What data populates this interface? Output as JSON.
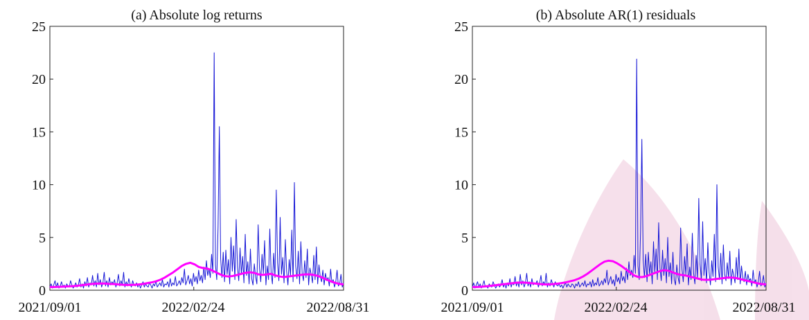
{
  "chart_data": [
    {
      "type": "line",
      "title": "(a) Absolute log returns",
      "xlabel": "",
      "ylabel": "",
      "ylim": [
        0,
        25
      ],
      "yticks": [
        0,
        5,
        10,
        15,
        20,
        25
      ],
      "x_start": "2021/09/01",
      "x_end": "2022/08/31",
      "xtick_labels": [
        "2021/09/01",
        "2022/02/24",
        "2022/08/31"
      ],
      "grid": false,
      "legend": "none",
      "series": [
        {
          "color": "#1515d6",
          "values": [
            0.3,
            0.6,
            0.2,
            0.5,
            0.9,
            0.3,
            0.7,
            0.2,
            0.4,
            0.8,
            0.3,
            0.5,
            0.2,
            0.6,
            0.4,
            0.3,
            0.9,
            0.5,
            0.2,
            0.4,
            0.7,
            0.3,
            0.5,
            1.1,
            0.3,
            0.6,
            0.2,
            0.8,
            0.4,
            1.2,
            0.3,
            0.7,
            0.5,
            1.4,
            0.4,
            0.9,
            0.3,
            1.6,
            0.5,
            1.0,
            0.3,
            0.7,
            1.7,
            0.4,
            0.9,
            0.3,
            1.2,
            0.5,
            0.8,
            0.6,
            1.0,
            0.3,
            0.7,
            1.5,
            0.4,
            0.9,
            0.5,
            1.7,
            0.3,
            0.8,
            0.4,
            1.1,
            0.6,
            0.3,
            0.9,
            0.5,
            0.4,
            0.7,
            0.3,
            0.6,
            0.2,
            0.5,
            0.8,
            0.3,
            0.6,
            0.4,
            0.3,
            0.7,
            0.5,
            0.2,
            0.6,
            0.4,
            0.9,
            0.3,
            0.5,
            0.7,
            0.4,
            1.0,
            0.3,
            0.6,
            0.5,
            0.8,
            0.3,
            1.1,
            0.4,
            0.7,
            0.5,
            1.3,
            0.4,
            0.6,
            0.9,
            0.5,
            1.2,
            0.7,
            2.0,
            0.5,
            0.9,
            1.4,
            0.6,
            1.1,
            0.4,
            1.6,
            0.8,
            1.3,
            0.6,
            1.9,
            0.9,
            1.4,
            0.7,
            2.2,
            1.0,
            2.8,
            1.4,
            2.0,
            1.2,
            3.4,
            1.6,
            22.5,
            2.4,
            1.0,
            6.0,
            15.5,
            3.0,
            1.2,
            3.6,
            0.8,
            3.8,
            1.5,
            2.9,
            0.6,
            5.0,
            1.8,
            4.2,
            1.0,
            6.7,
            2.2,
            0.9,
            4.0,
            1.5,
            3.2,
            0.7,
            5.3,
            1.4,
            2.7,
            0.6,
            3.9,
            1.1,
            0.5,
            2.5,
            1.3,
            0.6,
            6.2,
            2.1,
            0.8,
            3.4,
            1.6,
            4.7,
            0.5,
            2.3,
            1.0,
            5.8,
            1.7,
            0.6,
            3.5,
            1.2,
            9.5,
            2.6,
            0.9,
            6.9,
            1.5,
            3.1,
            0.7,
            4.8,
            1.8,
            0.5,
            2.9,
            1.4,
            5.7,
            0.8,
            10.2,
            2.3,
            1.1,
            3.7,
            0.6,
            4.6,
            1.6,
            0.9,
            2.8,
            1.2,
            3.9,
            0.5,
            2.1,
            1.5,
            0.7,
            3.3,
            1.0,
            4.1,
            0.6,
            2.4,
            1.3,
            0.8,
            1.9,
            0.5,
            1.6,
            0.9,
            1.2,
            0.4,
            2.0,
            0.7,
            1.0,
            0.3,
            0.8,
            1.9,
            0.4,
            0.6,
            1.5,
            0.3,
            0.7
          ]
        },
        {
          "color": "#ff00ff",
          "values": [
            0.3,
            0.3,
            0.32,
            0.34,
            0.36,
            0.38,
            0.4,
            0.45,
            0.5,
            0.55,
            0.6,
            0.62,
            0.64,
            0.63,
            0.6,
            0.58,
            0.55,
            0.52,
            0.5,
            0.5,
            0.52,
            0.55,
            0.6,
            0.68,
            0.75,
            0.85,
            1.0,
            1.2,
            1.45,
            1.7,
            2.0,
            2.3,
            2.5,
            2.6,
            2.45,
            2.2,
            2.1,
            2.05,
            1.9,
            1.7,
            1.5,
            1.35,
            1.3,
            1.35,
            1.45,
            1.55,
            1.65,
            1.7,
            1.65,
            1.5,
            1.45,
            1.5,
            1.55,
            1.4,
            1.3,
            1.25,
            1.3,
            1.35,
            1.4,
            1.45,
            1.5,
            1.5,
            1.45,
            1.35,
            1.2,
            1.0,
            0.85,
            0.7,
            0.6,
            0.55
          ]
        }
      ]
    },
    {
      "type": "line",
      "title": "(b) Absolute AR(1) residuals",
      "xlabel": "",
      "ylabel": "",
      "ylim": [
        0,
        25
      ],
      "yticks": [
        0,
        5,
        10,
        15,
        20,
        25
      ],
      "x_start": "2021/09/01",
      "x_end": "2022/08/31",
      "xtick_labels": [
        "2021/09/01",
        "2022/02/24",
        "2022/08/31"
      ],
      "grid": false,
      "legend": "none",
      "series": [
        {
          "color": "#1515d6",
          "values": [
            0.3,
            0.7,
            0.2,
            0.5,
            0.8,
            0.3,
            0.6,
            0.2,
            0.5,
            0.9,
            0.3,
            0.4,
            0.2,
            0.6,
            0.4,
            0.3,
            0.8,
            0.5,
            0.2,
            0.4,
            0.6,
            0.3,
            0.5,
            1.0,
            0.3,
            0.6,
            0.2,
            0.7,
            0.4,
            1.1,
            0.3,
            0.7,
            0.5,
            1.3,
            0.4,
            0.8,
            0.3,
            1.5,
            0.5,
            0.9,
            0.3,
            0.7,
            1.6,
            0.4,
            0.8,
            0.3,
            1.1,
            0.5,
            0.7,
            0.6,
            0.9,
            0.3,
            0.7,
            1.4,
            0.4,
            0.8,
            0.5,
            1.6,
            0.3,
            0.7,
            0.4,
            1.0,
            0.6,
            0.3,
            0.8,
            0.5,
            0.4,
            0.6,
            0.3,
            0.5,
            0.2,
            0.5,
            0.7,
            0.3,
            0.6,
            0.4,
            0.3,
            0.6,
            0.5,
            0.2,
            0.6,
            0.4,
            0.8,
            0.3,
            0.5,
            0.7,
            0.4,
            0.9,
            0.3,
            0.6,
            0.5,
            0.8,
            0.3,
            1.0,
            0.4,
            0.7,
            0.5,
            1.2,
            0.4,
            0.6,
            0.9,
            0.5,
            1.1,
            0.7,
            1.9,
            0.5,
            0.9,
            1.3,
            0.6,
            1.0,
            0.4,
            1.5,
            0.8,
            1.2,
            0.6,
            1.8,
            0.9,
            1.3,
            0.7,
            2.1,
            1.0,
            2.7,
            1.4,
            1.9,
            1.2,
            3.3,
            1.6,
            21.9,
            2.3,
            1.0,
            5.6,
            14.3,
            2.9,
            1.2,
            3.4,
            0.8,
            3.6,
            1.5,
            2.7,
            0.6,
            4.6,
            1.7,
            3.9,
            1.0,
            6.4,
            2.1,
            0.9,
            3.8,
            1.4,
            3.0,
            0.7,
            5.0,
            1.3,
            2.6,
            0.6,
            3.6,
            1.0,
            0.5,
            2.4,
            1.2,
            0.6,
            5.9,
            2.0,
            0.8,
            3.2,
            1.5,
            4.4,
            0.5,
            2.2,
            1.0,
            5.4,
            1.6,
            0.6,
            3.3,
            1.1,
            8.7,
            2.5,
            0.9,
            6.5,
            1.4,
            3.0,
            0.7,
            4.5,
            1.7,
            0.5,
            2.8,
            1.3,
            5.3,
            0.8,
            10.0,
            2.2,
            1.0,
            3.5,
            0.6,
            4.3,
            1.5,
            0.9,
            2.6,
            1.1,
            3.7,
            0.5,
            2.0,
            1.4,
            0.7,
            3.1,
            1.0,
            3.9,
            0.6,
            2.3,
            1.2,
            0.8,
            1.8,
            0.5,
            1.5,
            0.9,
            1.1,
            0.4,
            1.9,
            0.7,
            1.0,
            0.3,
            0.8,
            1.8,
            0.4,
            0.6,
            1.4,
            0.3,
            0.7
          ]
        },
        {
          "color": "#ff00ff",
          "values": [
            0.3,
            0.3,
            0.33,
            0.36,
            0.4,
            0.45,
            0.5,
            0.55,
            0.6,
            0.65,
            0.7,
            0.72,
            0.73,
            0.7,
            0.66,
            0.62,
            0.58,
            0.55,
            0.55,
            0.58,
            0.62,
            0.68,
            0.75,
            0.85,
            0.95,
            1.1,
            1.3,
            1.55,
            1.85,
            2.15,
            2.45,
            2.7,
            2.8,
            2.75,
            2.55,
            2.3,
            2.0,
            1.7,
            1.4,
            1.25,
            1.25,
            1.35,
            1.5,
            1.65,
            1.8,
            1.9,
            1.85,
            1.7,
            1.55,
            1.45,
            1.4,
            1.3,
            1.2,
            1.1,
            1.0,
            0.98,
            1.0,
            1.05,
            1.1,
            1.15,
            1.2,
            1.2,
            1.15,
            1.05,
            0.95,
            0.85,
            0.75,
            0.65,
            0.58,
            0.55
          ]
        }
      ]
    }
  ]
}
